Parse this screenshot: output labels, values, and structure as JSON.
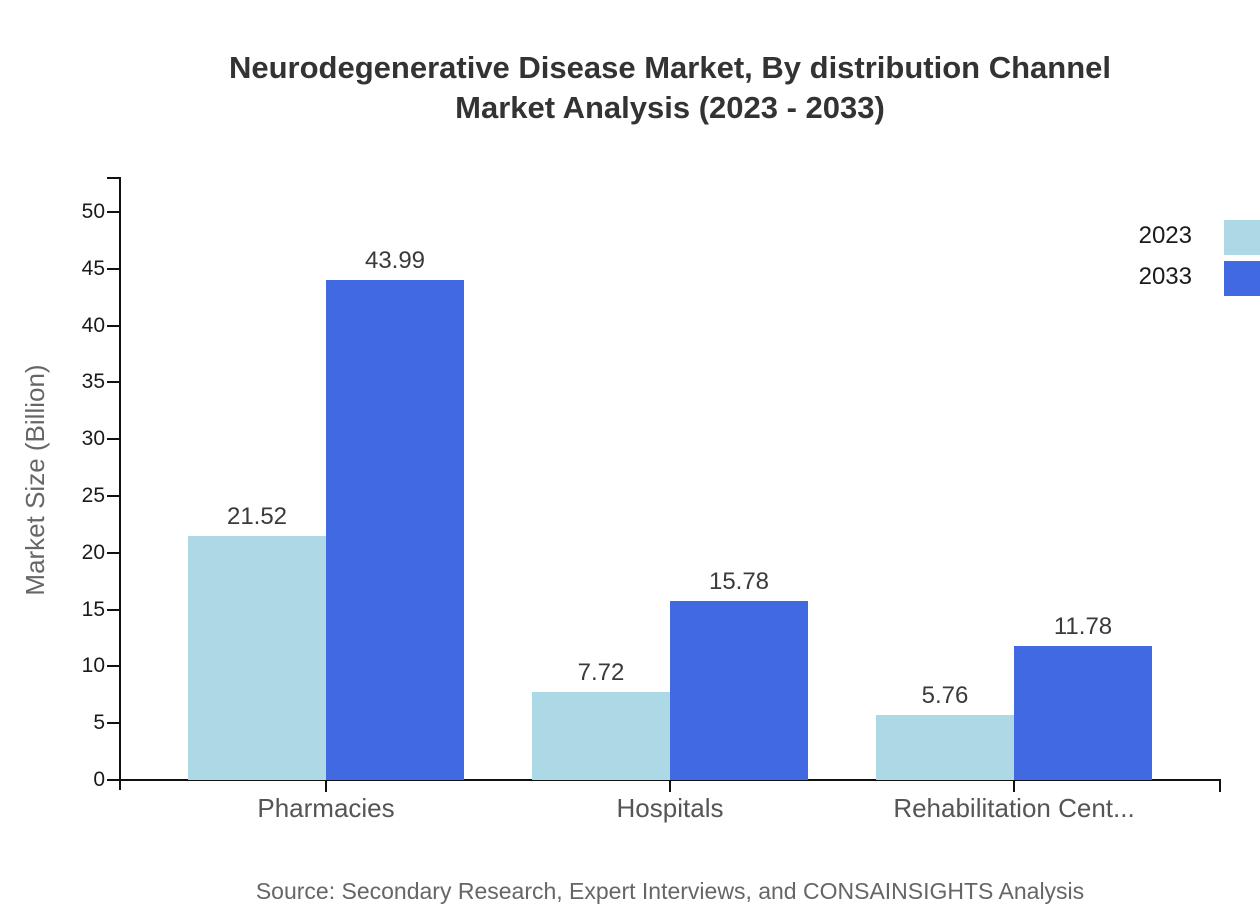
{
  "title": {
    "line1": "Neurodegenerative Disease Market, By distribution Channel",
    "line2": "Market Analysis (2023 - 2033)"
  },
  "source": "Source: Secondary Research, Expert Interviews, and CONSAINSIGHTS Analysis",
  "chart_data": {
    "type": "bar",
    "categories": [
      "Pharmacies",
      "Hospitals",
      "Rehabilitation Cent..."
    ],
    "series": [
      {
        "name": "2023",
        "color": "#ADD8E6",
        "values": [
          21.52,
          7.72,
          5.76
        ]
      },
      {
        "name": "2033",
        "color": "#4169E1",
        "values": [
          43.99,
          15.78,
          11.78
        ]
      }
    ],
    "xlabel": "",
    "ylabel": "Market Size (Billion)",
    "ylim": [
      0,
      50
    ],
    "yticks": [
      0,
      5,
      10,
      15,
      20,
      25,
      30,
      35,
      40,
      45,
      50
    ],
    "grid": false,
    "legend_position": "top-right",
    "value_labels": true
  }
}
